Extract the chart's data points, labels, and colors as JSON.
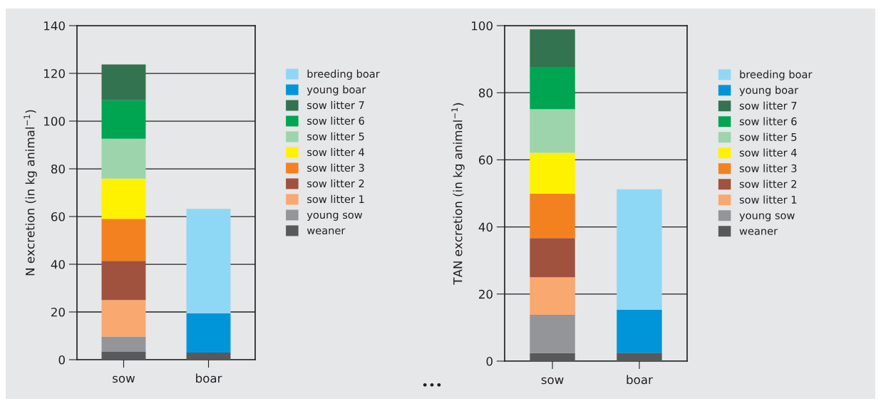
{
  "chart_data": [
    {
      "type": "bar",
      "stacked": true,
      "categories": [
        "sow",
        "boar"
      ],
      "ylabel": "N excretion (in kg animal$^{−1}$)",
      "ylim": [
        0,
        140
      ],
      "yticks": [
        0,
        20,
        40,
        60,
        80,
        100,
        120,
        140
      ],
      "grid": "y",
      "legend": "right",
      "annotations": [
        "•••"
      ],
      "series": [
        {
          "name": "weaner",
          "color": "#58595b",
          "values": [
            3.3,
            3.0
          ]
        },
        {
          "name": "young sow",
          "color": "#939598",
          "values": [
            6.4,
            null
          ]
        },
        {
          "name": "sow litter 1",
          "color": "#f9a870",
          "values": [
            15.3,
            null
          ]
        },
        {
          "name": "sow litter 2",
          "color": "#a0523f",
          "values": [
            16.4,
            null
          ]
        },
        {
          "name": "sow litter 3",
          "color": "#f48120",
          "values": [
            17.6,
            null
          ]
        },
        {
          "name": "sow litter 4",
          "color": "#fff200",
          "values": [
            16.9,
            null
          ]
        },
        {
          "name": "sow litter 5",
          "color": "#9dd4ac",
          "values": [
            16.7,
            null
          ]
        },
        {
          "name": "sow litter 6",
          "color": "#00a551",
          "values": [
            16.1,
            null
          ]
        },
        {
          "name": "sow litter 7",
          "color": "#33734f",
          "values": [
            15.0,
            null
          ]
        },
        {
          "name": "young boar",
          "color": "#0095d9",
          "values": [
            null,
            16.5
          ]
        },
        {
          "name": "breeding boar",
          "color": "#8fd8f5",
          "values": [
            null,
            43.7
          ]
        }
      ]
    },
    {
      "type": "bar",
      "stacked": true,
      "categories": [
        "sow",
        "boar"
      ],
      "ylabel": "TAN excretion (in kg animal$^{−1}$)",
      "ylim": [
        0,
        100
      ],
      "yticks": [
        0,
        20,
        40,
        60,
        80,
        100
      ],
      "grid": "y",
      "legend": "right",
      "series": [
        {
          "name": "weaner",
          "color": "#58595b",
          "values": [
            2.4,
            2.5
          ]
        },
        {
          "name": "young sow",
          "color": "#939598",
          "values": [
            11.4,
            null
          ]
        },
        {
          "name": "sow litter 1",
          "color": "#f9a870",
          "values": [
            11.2,
            null
          ]
        },
        {
          "name": "sow litter 2",
          "color": "#a0523f",
          "values": [
            11.7,
            null
          ]
        },
        {
          "name": "sow litter 3",
          "color": "#f48120",
          "values": [
            13.2,
            null
          ]
        },
        {
          "name": "sow litter 4",
          "color": "#fff200",
          "values": [
            12.2,
            null
          ]
        },
        {
          "name": "sow litter 5",
          "color": "#9dd4ac",
          "values": [
            13.0,
            null
          ]
        },
        {
          "name": "sow litter 6",
          "color": "#00a551",
          "values": [
            12.6,
            null
          ]
        },
        {
          "name": "sow litter 7",
          "color": "#33734f",
          "values": [
            11.2,
            null
          ]
        },
        {
          "name": "young boar",
          "color": "#0095d9",
          "values": [
            null,
            12.8
          ]
        },
        {
          "name": "breeding boar",
          "color": "#8fd8f5",
          "values": [
            null,
            35.9
          ]
        }
      ]
    }
  ]
}
